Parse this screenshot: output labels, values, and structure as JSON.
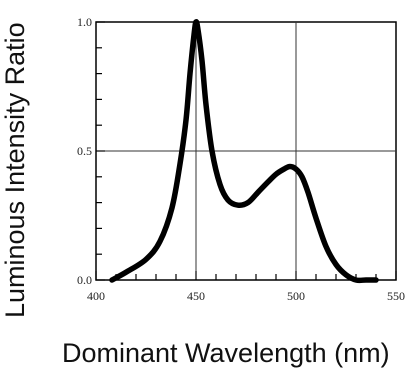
{
  "chart_data": {
    "type": "line",
    "title": "",
    "xlabel": "Dominant Wavelength (nm)",
    "ylabel": "Luminous Intensity Ratio",
    "xlim": [
      400,
      550
    ],
    "ylim": [
      0.0,
      1.0
    ],
    "x_ticks": [
      "400",
      "450",
      "500",
      "550"
    ],
    "y_ticks": [
      "0.0",
      "0.5",
      "1.0"
    ],
    "grid": true,
    "legend": "none",
    "series": [
      {
        "x": [
          408,
          415,
          425,
          432,
          438,
          442,
          445,
          447,
          449,
          450,
          451,
          453,
          455,
          458,
          462,
          466,
          471,
          476,
          481,
          486,
          490,
          494,
          497,
          500,
          503,
          506,
          510,
          515,
          520,
          525,
          530,
          535,
          540
        ],
        "y": [
          0.0,
          0.03,
          0.08,
          0.15,
          0.28,
          0.45,
          0.62,
          0.8,
          0.95,
          1.0,
          0.97,
          0.85,
          0.68,
          0.5,
          0.37,
          0.31,
          0.29,
          0.3,
          0.34,
          0.38,
          0.41,
          0.43,
          0.44,
          0.43,
          0.4,
          0.34,
          0.24,
          0.13,
          0.06,
          0.02,
          0.0,
          0.0,
          0.0
        ],
        "color": "#000000"
      }
    ]
  }
}
